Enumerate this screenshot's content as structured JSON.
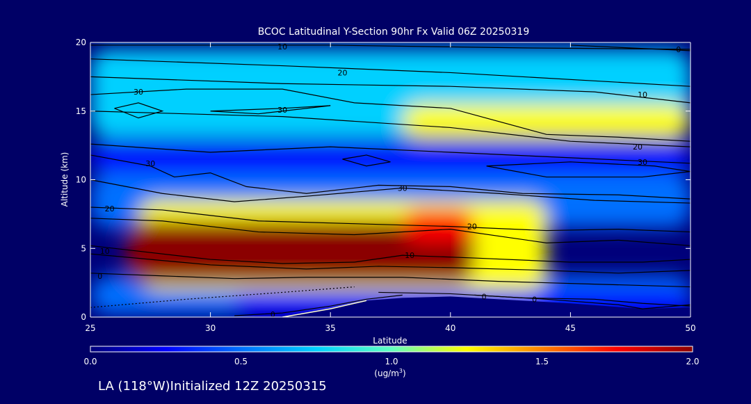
{
  "chart_data": {
    "type": "heatmap",
    "title": "BCOC Latitudinal Y-Section 90hr  Fx Valid 06Z 20250319",
    "xlabel": "Latitude",
    "ylabel": "Altitude (km)",
    "xlim": [
      25,
      50
    ],
    "ylim": [
      0,
      20
    ],
    "x_ticks": [
      25,
      30,
      35,
      40,
      45,
      50
    ],
    "y_ticks": [
      0,
      5,
      10,
      15,
      20
    ],
    "colorbar": {
      "range": [
        0.0,
        2.0
      ],
      "ticks": [
        "0.0",
        "0.5",
        "1.0",
        "1.5",
        "2.0"
      ],
      "unit_label": "(ug/m",
      "unit_sup": "3",
      "unit_close": ")",
      "colors": [
        "#00007a",
        "#0000ff",
        "#0070ff",
        "#00d0ff",
        "#60ffc0",
        "#ffff00",
        "#ff8000",
        "#ff0000",
        "#8b0000"
      ]
    },
    "concentration_levels": [
      0.0,
      0.25,
      0.5,
      0.75,
      1.0,
      1.3,
      1.6,
      1.85,
      2.0
    ],
    "concentration_features": [
      {
        "x": [
          25,
          50
        ],
        "y": [
          0.2,
          3.0
        ],
        "value": 0.45
      },
      {
        "x": [
          25,
          50
        ],
        "y": [
          6.5,
          10.5
        ],
        "value": 0.45
      },
      {
        "x": [
          25,
          50
        ],
        "y": [
          13.0,
          19.5
        ],
        "value": 0.75
      },
      {
        "x": [
          38,
          50
        ],
        "y": [
          13.0,
          15.5
        ],
        "value": 1.1
      },
      {
        "x": [
          25,
          50
        ],
        "y": [
          10.5,
          12.8
        ],
        "value": 0.05
      },
      {
        "x": [
          27,
          44
        ],
        "y": [
          2.0,
          8.5
        ],
        "value": 1.3
      },
      {
        "x": [
          26.5,
          41
        ],
        "y": [
          2.5,
          7.0
        ],
        "value": 2.0
      },
      {
        "x": [
          38,
          41
        ],
        "y": [
          5.5,
          7.8
        ],
        "value": 1.7
      },
      {
        "x": [
          31,
          50
        ],
        "y": [
          0.0,
          2.0
        ],
        "value": 0.1
      }
    ],
    "contours": [
      {
        "label": "10",
        "label_pos": [
          33.0,
          19.7
        ],
        "points": [
          [
            25,
            19.8
          ],
          [
            35,
            19.8
          ],
          [
            43,
            19.6
          ],
          [
            50,
            19.5
          ]
        ]
      },
      {
        "label": "0",
        "label_pos": [
          49.5,
          19.5
        ],
        "points": [
          [
            45,
            19.8
          ],
          [
            50,
            19.4
          ]
        ]
      },
      {
        "label": "20",
        "label_pos": [
          35.5,
          17.8
        ],
        "points": [
          [
            25,
            18.8
          ],
          [
            33,
            18.3
          ],
          [
            40,
            17.8
          ],
          [
            46,
            17.2
          ],
          [
            50,
            16.8
          ]
        ]
      },
      {
        "label": "10",
        "label_pos": [
          48.0,
          16.2
        ],
        "points": [
          [
            25,
            17.5
          ],
          [
            33,
            17.0
          ],
          [
            40,
            16.8
          ],
          [
            46,
            16.4
          ],
          [
            50,
            15.6
          ]
        ]
      },
      {
        "label": "30",
        "label_pos": [
          27.0,
          16.4
        ],
        "points": [
          [
            25,
            16.2
          ],
          [
            29,
            16.6
          ],
          [
            33,
            16.6
          ],
          [
            36,
            15.6
          ],
          [
            40,
            15.2
          ],
          [
            44,
            13.3
          ],
          [
            47,
            13.1
          ],
          [
            50,
            12.8
          ]
        ]
      },
      {
        "label": "30",
        "label_pos": [
          33.0,
          15.1
        ],
        "points": [
          [
            30,
            15.0
          ],
          [
            33,
            15.2
          ],
          [
            35,
            15.4
          ],
          [
            32,
            14.8
          ],
          [
            30,
            15.0
          ]
        ]
      },
      {
        "label": "",
        "label_pos": null,
        "points": [
          [
            26,
            15.2
          ],
          [
            27,
            15.6
          ],
          [
            28,
            15.0
          ],
          [
            27,
            14.5
          ],
          [
            26,
            15.2
          ]
        ]
      },
      {
        "label": "20",
        "label_pos": [
          47.8,
          12.4
        ],
        "points": [
          [
            25,
            15.0
          ],
          [
            33,
            14.6
          ],
          [
            40,
            13.8
          ],
          [
            45,
            12.8
          ],
          [
            50,
            12.4
          ]
        ]
      },
      {
        "label": "30",
        "label_pos": [
          48.0,
          11.3
        ],
        "points": [
          [
            25,
            12.6
          ],
          [
            30,
            12.0
          ],
          [
            35,
            12.4
          ],
          [
            40,
            12.0
          ],
          [
            45,
            11.6
          ],
          [
            50,
            11.2
          ]
        ]
      },
      {
        "label": "",
        "label_pos": null,
        "points": [
          [
            35.5,
            11.5
          ],
          [
            36.5,
            11.8
          ],
          [
            37.5,
            11.3
          ],
          [
            36.5,
            11.0
          ],
          [
            35.5,
            11.5
          ]
        ]
      },
      {
        "label": "30",
        "label_pos": [
          27.5,
          11.2
        ],
        "points": [
          [
            25,
            11.8
          ],
          [
            27.5,
            11.0
          ],
          [
            28.5,
            10.2
          ],
          [
            30,
            10.5
          ],
          [
            31.5,
            9.5
          ],
          [
            34,
            9.0
          ],
          [
            37,
            9.6
          ],
          [
            40,
            9.5
          ],
          [
            43,
            9.0
          ],
          [
            47,
            8.9
          ],
          [
            50,
            8.6
          ]
        ]
      },
      {
        "label": "",
        "label_pos": null,
        "points": [
          [
            41.5,
            11.0
          ],
          [
            45,
            11.3
          ],
          [
            48.5,
            11.0
          ],
          [
            50,
            10.6
          ],
          [
            48,
            10.2
          ],
          [
            44,
            10.2
          ],
          [
            41.5,
            11.0
          ]
        ]
      },
      {
        "label": "30",
        "label_pos": [
          38.0,
          9.4
        ],
        "points": [
          [
            25,
            10.0
          ],
          [
            28,
            9.0
          ],
          [
            31,
            8.4
          ],
          [
            34,
            8.8
          ],
          [
            38,
            9.4
          ],
          [
            42,
            9.0
          ],
          [
            46,
            8.5
          ],
          [
            50,
            8.3
          ]
        ]
      },
      {
        "label": "20",
        "label_pos": [
          25.8,
          7.9
        ],
        "points": [
          [
            25,
            8.0
          ],
          [
            28,
            7.8
          ],
          [
            32,
            7.0
          ],
          [
            36,
            6.8
          ],
          [
            40,
            6.6
          ],
          [
            44,
            6.3
          ],
          [
            47,
            6.4
          ],
          [
            50,
            6.2
          ]
        ]
      },
      {
        "label": "20",
        "label_pos": [
          40.9,
          6.6
        ],
        "points": [
          [
            25,
            7.2
          ],
          [
            28,
            7.0
          ],
          [
            32,
            6.2
          ],
          [
            36,
            6.0
          ],
          [
            40,
            6.4
          ],
          [
            44,
            5.4
          ],
          [
            47,
            5.6
          ],
          [
            50,
            5.2
          ]
        ]
      },
      {
        "label": "10",
        "label_pos": [
          25.6,
          4.8
        ],
        "points": [
          [
            25,
            5.2
          ],
          [
            27,
            4.8
          ],
          [
            30,
            4.2
          ],
          [
            33,
            3.9
          ],
          [
            36,
            4.0
          ],
          [
            38,
            4.5
          ],
          [
            41,
            4.3
          ],
          [
            45,
            4.0
          ],
          [
            48,
            4.0
          ],
          [
            50,
            4.2
          ]
        ]
      },
      {
        "label": "10",
        "label_pos": [
          38.3,
          4.5
        ],
        "points": [
          [
            25,
            4.6
          ],
          [
            30,
            3.8
          ],
          [
            34,
            3.5
          ],
          [
            37,
            3.7
          ],
          [
            40,
            3.6
          ],
          [
            44,
            3.4
          ],
          [
            47,
            3.2
          ],
          [
            50,
            3.4
          ]
        ]
      },
      {
        "label": "0",
        "label_pos": [
          25.4,
          3.0
        ],
        "points": [
          [
            25,
            3.2
          ],
          [
            28,
            3.0
          ],
          [
            31,
            2.8
          ],
          [
            34,
            2.9
          ],
          [
            38,
            2.9
          ],
          [
            42,
            2.6
          ],
          [
            46,
            2.4
          ],
          [
            50,
            2.2
          ]
        ]
      },
      {
        "label": "0",
        "label_pos": [
          41.4,
          1.5
        ],
        "points": [
          [
            37,
            1.8
          ],
          [
            40,
            1.7
          ],
          [
            43,
            1.4
          ],
          [
            46,
            1.3
          ],
          [
            48,
            1.0
          ],
          [
            50,
            0.8
          ]
        ]
      },
      {
        "label": "0",
        "label_pos": [
          43.5,
          1.3
        ],
        "points": [
          [
            41,
            1.6
          ],
          [
            44,
            1.3
          ],
          [
            47,
            0.9
          ],
          [
            48,
            0.6
          ],
          [
            50,
            0.9
          ]
        ]
      },
      {
        "label": "0",
        "label_pos": [
          32.6,
          0.2
        ],
        "points": [
          [
            31,
            0.1
          ],
          [
            33,
            0.3
          ],
          [
            35,
            0.8
          ],
          [
            36.5,
            1.3
          ],
          [
            38,
            1.6
          ]
        ]
      }
    ],
    "dotted_line": [
      [
        25,
        0.7
      ],
      [
        29,
        1.3
      ],
      [
        33,
        1.8
      ],
      [
        36,
        2.2
      ]
    ],
    "terrain": [
      [
        33.0,
        0.0
      ],
      [
        34.0,
        0.3
      ],
      [
        35.0,
        0.6
      ],
      [
        36.5,
        1.2
      ],
      [
        38,
        1.4
      ],
      [
        40,
        1.5
      ],
      [
        42,
        1.3
      ],
      [
        45,
        1.0
      ],
      [
        48,
        0.6
      ],
      [
        50,
        0.7
      ],
      [
        50,
        0.0
      ]
    ]
  },
  "footer": {
    "caption": "LA (118°W)Initialized 12Z 20250315"
  }
}
